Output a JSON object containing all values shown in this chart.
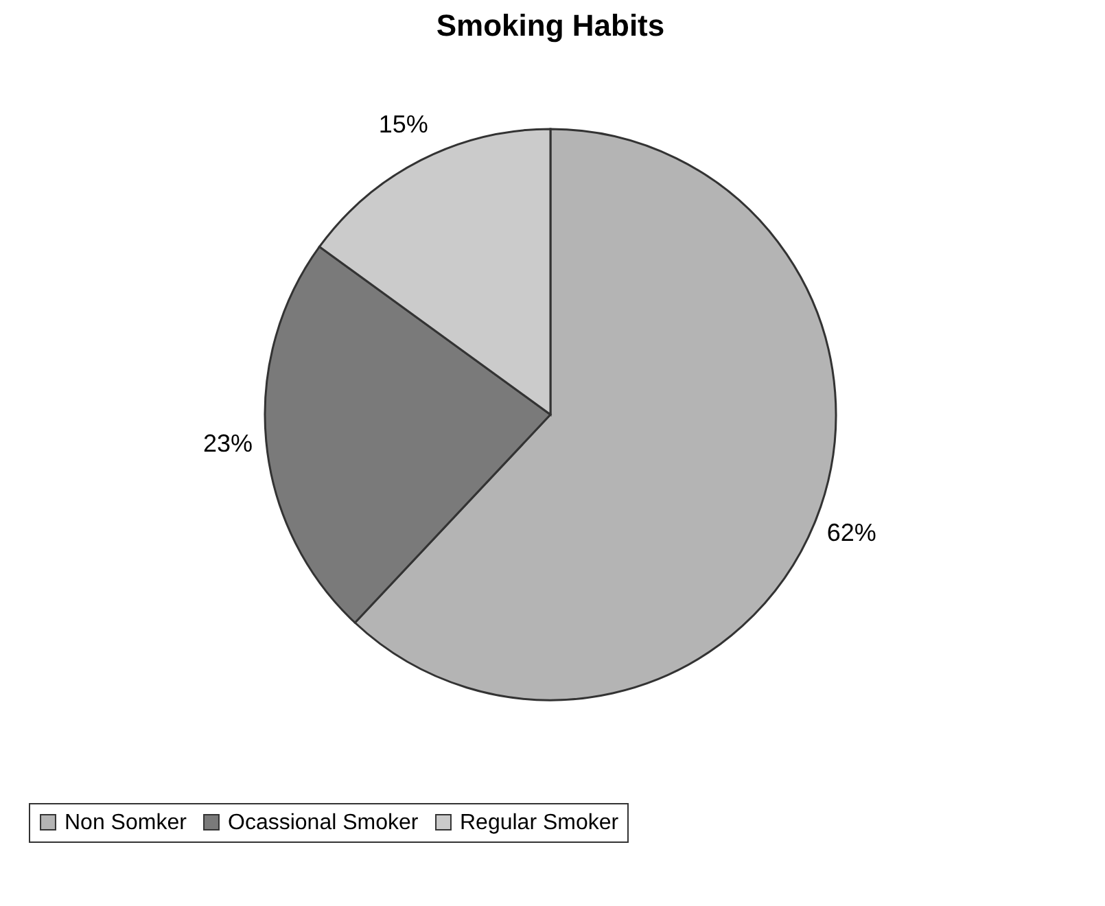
{
  "chart_data": {
    "type": "pie",
    "title": "Smoking Habits",
    "categories": [
      "Non Somker",
      "Ocassional Smoker",
      "Regular Smoker"
    ],
    "values": [
      62,
      23,
      15
    ],
    "colors": [
      "#b4b4b4",
      "#7a7a7a",
      "#cbcbcb"
    ],
    "value_labels": [
      "62%",
      "23%",
      "15%"
    ],
    "legend": "bottom"
  }
}
